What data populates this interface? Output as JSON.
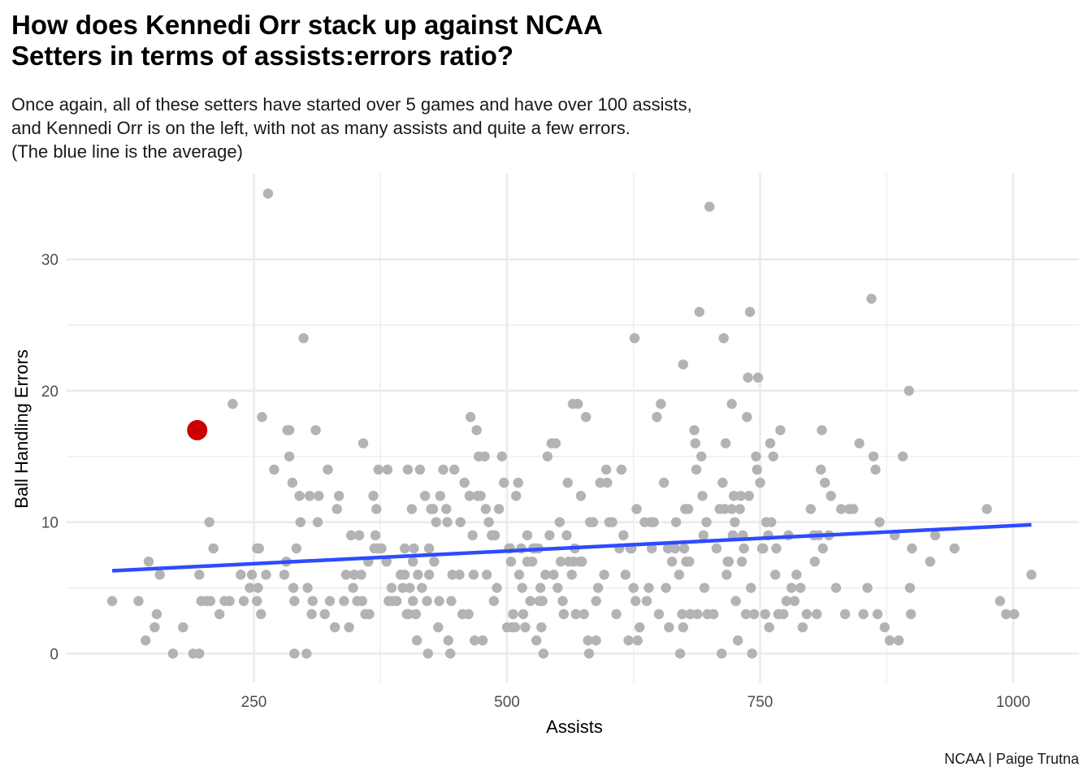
{
  "title_lines": [
    "How does Kennedi Orr stack up against NCAA",
    "Setters in terms of assists:errors ratio?"
  ],
  "subtitle_lines": [
    "Once again, all of these setters have started over 5 games and have over 100 assists,",
    "and Kennedi Orr is on the left, with not as many assists and quite a few errors.",
    "(The blue line is the average)"
  ],
  "caption": "NCAA | Paige Trutna",
  "chart_data": {
    "type": "scatter",
    "xlabel": "Assists",
    "ylabel": "Ball Handling Errors",
    "xlim": [
      65,
      1065
    ],
    "ylim": [
      -2.2,
      36.5
    ],
    "x_ticks": [
      250,
      500,
      750,
      1000
    ],
    "y_ticks": [
      0,
      10,
      20,
      30
    ],
    "grid": true,
    "colors": {
      "points": "#b3b3b3",
      "highlight": "#cc0000",
      "trend": "#2e4bff",
      "grid": "#ebebeb"
    },
    "highlight": {
      "x": 194,
      "y": 17
    },
    "trend_line": {
      "x": [
        110,
        1018
      ],
      "y": [
        6.3,
        9.8
      ]
    },
    "points": [
      [
        110,
        4
      ],
      [
        136,
        4
      ],
      [
        143,
        1
      ],
      [
        146,
        7
      ],
      [
        152,
        2
      ],
      [
        154,
        3
      ],
      [
        157,
        6
      ],
      [
        170,
        0
      ],
      [
        180,
        2
      ],
      [
        190,
        0
      ],
      [
        196,
        0
      ],
      [
        196,
        6
      ],
      [
        198,
        4
      ],
      [
        203,
        4
      ],
      [
        207,
        4
      ],
      [
        206,
        10
      ],
      [
        210,
        8
      ],
      [
        216,
        3
      ],
      [
        221,
        4
      ],
      [
        226,
        4
      ],
      [
        229,
        19
      ],
      [
        237,
        6
      ],
      [
        240,
        4
      ],
      [
        246,
        5
      ],
      [
        248,
        6
      ],
      [
        253,
        4
      ],
      [
        253,
        8
      ],
      [
        255,
        8
      ],
      [
        254,
        5
      ],
      [
        257,
        3
      ],
      [
        258,
        18
      ],
      [
        262,
        6
      ],
      [
        264,
        35
      ],
      [
        270,
        14
      ],
      [
        280,
        6
      ],
      [
        282,
        7
      ],
      [
        283,
        17
      ],
      [
        285,
        17
      ],
      [
        285,
        15
      ],
      [
        288,
        13
      ],
      [
        289,
        5
      ],
      [
        290,
        4
      ],
      [
        292,
        8
      ],
      [
        290,
        0
      ],
      [
        295,
        12
      ],
      [
        296,
        10
      ],
      [
        299,
        24
      ],
      [
        302,
        0
      ],
      [
        303,
        5
      ],
      [
        305,
        12
      ],
      [
        307,
        3
      ],
      [
        308,
        4
      ],
      [
        311,
        17
      ],
      [
        313,
        10
      ],
      [
        314,
        12
      ],
      [
        320,
        3
      ],
      [
        323,
        14
      ],
      [
        325,
        4
      ],
      [
        330,
        2
      ],
      [
        332,
        11
      ],
      [
        334,
        12
      ],
      [
        339,
        4
      ],
      [
        341,
        6
      ],
      [
        344,
        2
      ],
      [
        346,
        9
      ],
      [
        348,
        5
      ],
      [
        349,
        6
      ],
      [
        352,
        4
      ],
      [
        354,
        9
      ],
      [
        356,
        6
      ],
      [
        357,
        4
      ],
      [
        358,
        16
      ],
      [
        360,
        3
      ],
      [
        363,
        7
      ],
      [
        364,
        3
      ],
      [
        368,
        12
      ],
      [
        369,
        8
      ],
      [
        370,
        9
      ],
      [
        371,
        11
      ],
      [
        372,
        8
      ],
      [
        373,
        14
      ],
      [
        376,
        8
      ],
      [
        381,
        7
      ],
      [
        382,
        14
      ],
      [
        383,
        4
      ],
      [
        386,
        5
      ],
      [
        387,
        4
      ],
      [
        391,
        4
      ],
      [
        395,
        6
      ],
      [
        397,
        5
      ],
      [
        399,
        8
      ],
      [
        401,
        3
      ],
      [
        399,
        6
      ],
      [
        403,
        3
      ],
      [
        402,
        14
      ],
      [
        404,
        5
      ],
      [
        406,
        11
      ],
      [
        407,
        7
      ],
      [
        407,
        4
      ],
      [
        408,
        8
      ],
      [
        410,
        3
      ],
      [
        411,
        1
      ],
      [
        412,
        6
      ],
      [
        414,
        14
      ],
      [
        416,
        5
      ],
      [
        419,
        12
      ],
      [
        421,
        4
      ],
      [
        422,
        0
      ],
      [
        423,
        8
      ],
      [
        423,
        6
      ],
      [
        425,
        11
      ],
      [
        427,
        11
      ],
      [
        428,
        7
      ],
      [
        430,
        10
      ],
      [
        432,
        2
      ],
      [
        433,
        4
      ],
      [
        434,
        12
      ],
      [
        437,
        14
      ],
      [
        440,
        11
      ],
      [
        441,
        10
      ],
      [
        442,
        1
      ],
      [
        444,
        0
      ],
      [
        445,
        4
      ],
      [
        446,
        6
      ],
      [
        448,
        14
      ],
      [
        453,
        6
      ],
      [
        454,
        10
      ],
      [
        456,
        3
      ],
      [
        458,
        13
      ],
      [
        462,
        3
      ],
      [
        463,
        12
      ],
      [
        464,
        18
      ],
      [
        466,
        9
      ],
      [
        467,
        6
      ],
      [
        468,
        1
      ],
      [
        470,
        17
      ],
      [
        471,
        12
      ],
      [
        472,
        15
      ],
      [
        472,
        12
      ],
      [
        474,
        12
      ],
      [
        476,
        1
      ],
      [
        478,
        15
      ],
      [
        479,
        11
      ],
      [
        480,
        6
      ],
      [
        482,
        10
      ],
      [
        485,
        9
      ],
      [
        487,
        4
      ],
      [
        488,
        9
      ],
      [
        490,
        5
      ],
      [
        492,
        11
      ],
      [
        495,
        15
      ],
      [
        497,
        13
      ],
      [
        500,
        2
      ],
      [
        502,
        8
      ],
      [
        503,
        8
      ],
      [
        504,
        7
      ],
      [
        505,
        2
      ],
      [
        506,
        3
      ],
      [
        508,
        2
      ],
      [
        509,
        12
      ],
      [
        511,
        13
      ],
      [
        512,
        6
      ],
      [
        514,
        8
      ],
      [
        515,
        5
      ],
      [
        516,
        3
      ],
      [
        518,
        2
      ],
      [
        520,
        7
      ],
      [
        520,
        9
      ],
      [
        523,
        4
      ],
      [
        525,
        7
      ],
      [
        526,
        8
      ],
      [
        527,
        8
      ],
      [
        529,
        1
      ],
      [
        531,
        8
      ],
      [
        532,
        4
      ],
      [
        533,
        5
      ],
      [
        534,
        2
      ],
      [
        535,
        4
      ],
      [
        536,
        0
      ],
      [
        538,
        6
      ],
      [
        540,
        15
      ],
      [
        542,
        9
      ],
      [
        544,
        16
      ],
      [
        546,
        6
      ],
      [
        548,
        16
      ],
      [
        550,
        5
      ],
      [
        552,
        10
      ],
      [
        553,
        7
      ],
      [
        555,
        4
      ],
      [
        556,
        3
      ],
      [
        559,
        9
      ],
      [
        560,
        13
      ],
      [
        561,
        7
      ],
      [
        564,
        6
      ],
      [
        565,
        19
      ],
      [
        566,
        7
      ],
      [
        567,
        8
      ],
      [
        568,
        3
      ],
      [
        570,
        19
      ],
      [
        572,
        7
      ],
      [
        573,
        12
      ],
      [
        574,
        7
      ],
      [
        576,
        3
      ],
      [
        578,
        18
      ],
      [
        580,
        1
      ],
      [
        581,
        0
      ],
      [
        582,
        10
      ],
      [
        585,
        10
      ],
      [
        588,
        1
      ],
      [
        588,
        4
      ],
      [
        590,
        5
      ],
      [
        592,
        13
      ],
      [
        596,
        6
      ],
      [
        598,
        14
      ],
      [
        599,
        13
      ],
      [
        601,
        10
      ],
      [
        604,
        10
      ],
      [
        608,
        3
      ],
      [
        611,
        8
      ],
      [
        613,
        14
      ],
      [
        615,
        9
      ],
      [
        617,
        6
      ],
      [
        620,
        1
      ],
      [
        622,
        8
      ],
      [
        623,
        8
      ],
      [
        625,
        5
      ],
      [
        626,
        24
      ],
      [
        627,
        4
      ],
      [
        628,
        11
      ],
      [
        629,
        1
      ],
      [
        631,
        2
      ],
      [
        636,
        10
      ],
      [
        638,
        4
      ],
      [
        640,
        5
      ],
      [
        642,
        10
      ],
      [
        643,
        8
      ],
      [
        645,
        10
      ],
      [
        648,
        18
      ],
      [
        650,
        3
      ],
      [
        652,
        19
      ],
      [
        655,
        13
      ],
      [
        657,
        5
      ],
      [
        659,
        8
      ],
      [
        660,
        2
      ],
      [
        663,
        7
      ],
      [
        666,
        8
      ],
      [
        667,
        10
      ],
      [
        670,
        6
      ],
      [
        671,
        0
      ],
      [
        673,
        3
      ],
      [
        674,
        22
      ],
      [
        674,
        2
      ],
      [
        675,
        8
      ],
      [
        676,
        11
      ],
      [
        677,
        7
      ],
      [
        679,
        11
      ],
      [
        680,
        7
      ],
      [
        681,
        3
      ],
      [
        685,
        17
      ],
      [
        686,
        16
      ],
      [
        687,
        14
      ],
      [
        688,
        3
      ],
      [
        690,
        26
      ],
      [
        692,
        15
      ],
      [
        693,
        12
      ],
      [
        694,
        9
      ],
      [
        695,
        5
      ],
      [
        697,
        10
      ],
      [
        698,
        3
      ],
      [
        700,
        34
      ],
      [
        704,
        3
      ],
      [
        707,
        8
      ],
      [
        710,
        11
      ],
      [
        712,
        0
      ],
      [
        713,
        13
      ],
      [
        714,
        24
      ],
      [
        715,
        11
      ],
      [
        716,
        16
      ],
      [
        717,
        6
      ],
      [
        718,
        7
      ],
      [
        719,
        7
      ],
      [
        722,
        19
      ],
      [
        722,
        11
      ],
      [
        723,
        9
      ],
      [
        724,
        12
      ],
      [
        725,
        10
      ],
      [
        726,
        4
      ],
      [
        728,
        1
      ],
      [
        730,
        11
      ],
      [
        731,
        12
      ],
      [
        732,
        7
      ],
      [
        733,
        9
      ],
      [
        734,
        8
      ],
      [
        736,
        3
      ],
      [
        737,
        18
      ],
      [
        738,
        21
      ],
      [
        739,
        12
      ],
      [
        740,
        26
      ],
      [
        741,
        5
      ],
      [
        742,
        0
      ],
      [
        744,
        3
      ],
      [
        746,
        15
      ],
      [
        747,
        14
      ],
      [
        748,
        21
      ],
      [
        750,
        13
      ],
      [
        752,
        8
      ],
      [
        753,
        8
      ],
      [
        755,
        3
      ],
      [
        756,
        10
      ],
      [
        758,
        9
      ],
      [
        759,
        2
      ],
      [
        760,
        16
      ],
      [
        761,
        10
      ],
      [
        763,
        15
      ],
      [
        765,
        6
      ],
      [
        766,
        8
      ],
      [
        768,
        3
      ],
      [
        770,
        17
      ],
      [
        773,
        3
      ],
      [
        776,
        4
      ],
      [
        778,
        9
      ],
      [
        781,
        5
      ],
      [
        784,
        4
      ],
      [
        786,
        6
      ],
      [
        790,
        5
      ],
      [
        792,
        2
      ],
      [
        796,
        3
      ],
      [
        800,
        11
      ],
      [
        803,
        9
      ],
      [
        804,
        7
      ],
      [
        806,
        3
      ],
      [
        808,
        9
      ],
      [
        810,
        14
      ],
      [
        811,
        17
      ],
      [
        812,
        8
      ],
      [
        814,
        13
      ],
      [
        818,
        9
      ],
      [
        820,
        12
      ],
      [
        825,
        5
      ],
      [
        830,
        11
      ],
      [
        834,
        3
      ],
      [
        838,
        11
      ],
      [
        842,
        11
      ],
      [
        848,
        16
      ],
      [
        852,
        3
      ],
      [
        856,
        5
      ],
      [
        860,
        27
      ],
      [
        862,
        15
      ],
      [
        864,
        14
      ],
      [
        866,
        3
      ],
      [
        868,
        10
      ],
      [
        873,
        2
      ],
      [
        878,
        1
      ],
      [
        883,
        9
      ],
      [
        887,
        1
      ],
      [
        891,
        15
      ],
      [
        897,
        20
      ],
      [
        898,
        5
      ],
      [
        900,
        8
      ],
      [
        899,
        3
      ],
      [
        918,
        7
      ],
      [
        923,
        9
      ],
      [
        942,
        8
      ],
      [
        974,
        11
      ],
      [
        987,
        4
      ],
      [
        993,
        3
      ],
      [
        1001,
        3
      ],
      [
        1018,
        6
      ]
    ]
  }
}
